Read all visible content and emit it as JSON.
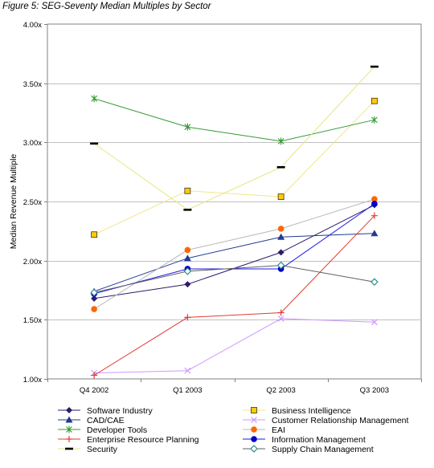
{
  "figure_title": "Figure 5: SEG-Seventy Median Multiples by Sector",
  "chart_data": {
    "type": "line",
    "title": "Figure 5: SEG-Seventy Median Multiples by Sector",
    "xlabel": "",
    "ylabel": "Median Revenue Multiple",
    "categories": [
      "Q4 2002",
      "Q1 2003",
      "Q2 2003",
      "Q3 2003"
    ],
    "ylim": [
      1.0,
      4.0
    ],
    "yticks": [
      1.0,
      1.5,
      2.0,
      2.5,
      3.0,
      3.5,
      4.0
    ],
    "ytick_labels": [
      "1.00x",
      "1.50x",
      "2.00x",
      "2.50x",
      "3.00x",
      "3.50x",
      "4.00x"
    ],
    "grid": true,
    "legend_position": "bottom",
    "series": [
      {
        "name": "Software Industry",
        "color": "#2E1A6E",
        "marker": "diamond",
        "values": [
          1.68,
          1.8,
          2.07,
          2.47
        ]
      },
      {
        "name": "Business Intelligence",
        "color": "#F0E68C",
        "marker": "square",
        "marker_fill": "#FFCC00",
        "values": [
          2.22,
          2.59,
          2.54,
          3.35
        ]
      },
      {
        "name": "CAD/CAE",
        "color": "#1F3A93",
        "marker": "triangle",
        "values": [
          1.74,
          2.02,
          2.2,
          2.23
        ]
      },
      {
        "name": "Customer Relationship Management",
        "color": "#CC99FF",
        "marker": "x",
        "values": [
          1.05,
          1.07,
          1.51,
          1.48
        ]
      },
      {
        "name": "Developer Tools",
        "color": "#339933",
        "marker": "asterisk",
        "values": [
          3.37,
          3.13,
          3.01,
          3.19
        ]
      },
      {
        "name": "EAI",
        "color": "#B8B8B8",
        "marker": "circle",
        "marker_fill": "#FF6600",
        "values": [
          1.59,
          2.09,
          2.27,
          2.52
        ]
      },
      {
        "name": "Enterprise Resource Planning",
        "color": "#E03C31",
        "marker": "plus",
        "values": [
          1.03,
          1.52,
          1.56,
          2.38
        ]
      },
      {
        "name": "Information Management",
        "color": "#1A1AE6",
        "marker": "circle",
        "marker_fill": "#0000CC",
        "values": [
          1.72,
          1.93,
          1.93,
          2.48
        ]
      },
      {
        "name": "Security",
        "color": "#E6E680",
        "marker": "dash",
        "marker_fill": "#000000",
        "values": [
          2.99,
          2.43,
          2.79,
          3.64
        ]
      },
      {
        "name": "Supply Chain Management",
        "color": "#606060",
        "marker": "open-diamond",
        "marker_fill": "#2E8B8B",
        "values": [
          1.73,
          1.91,
          1.96,
          1.82
        ]
      }
    ]
  }
}
